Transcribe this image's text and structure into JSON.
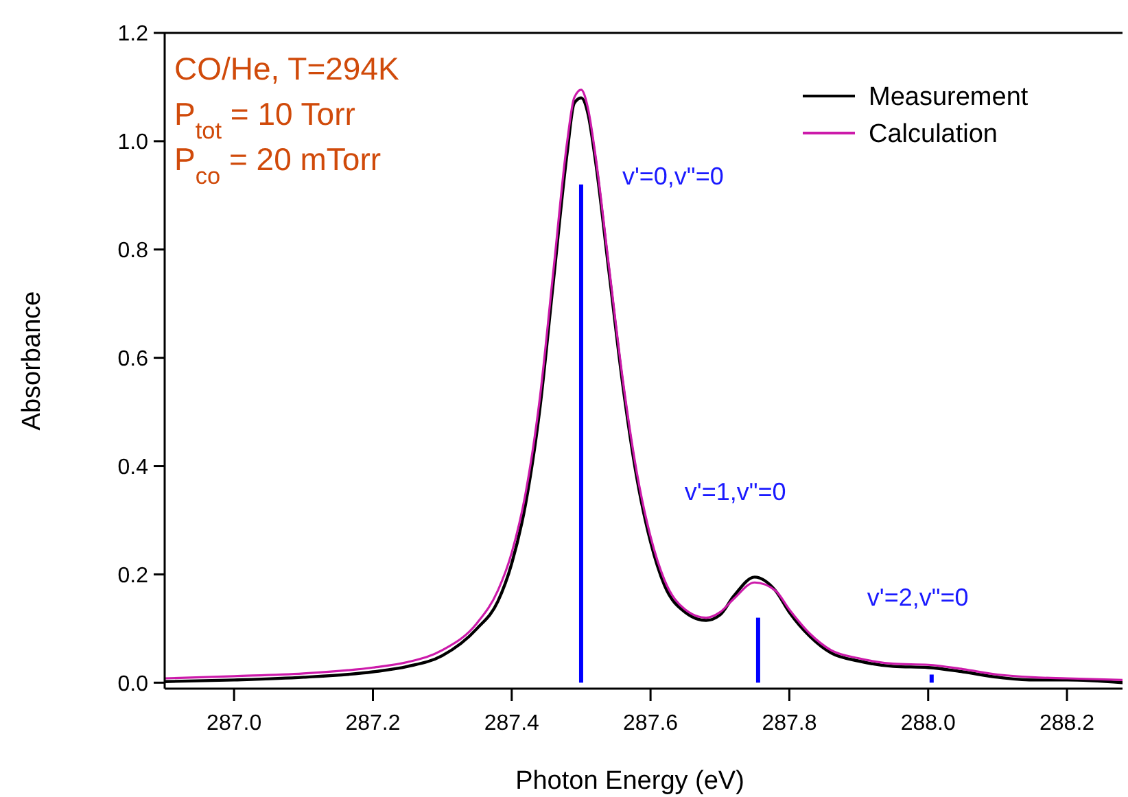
{
  "chart_data": {
    "type": "line",
    "xlabel": "Photon Energy (eV)",
    "ylabel": "Absorbance",
    "xlim": [
      286.9,
      288.28
    ],
    "ylim": [
      -0.011,
      1.2
    ],
    "xticks": [
      {
        "value": 287.0,
        "label": "287.0"
      },
      {
        "value": 287.2,
        "label": "287.2"
      },
      {
        "value": 287.4,
        "label": "287.4"
      },
      {
        "value": 287.6,
        "label": "287.6"
      },
      {
        "value": 287.8,
        "label": "287.8"
      },
      {
        "value": 288.0,
        "label": "288.0"
      },
      {
        "value": 288.2,
        "label": "288.2"
      }
    ],
    "yticks": [
      {
        "value": 0,
        "label": "0.0"
      },
      {
        "value": 0.2,
        "label": "0.2"
      },
      {
        "value": 0.4,
        "label": "0.4"
      },
      {
        "value": 0.6,
        "label": "0.6"
      },
      {
        "value": 0.8,
        "label": "0.8"
      },
      {
        "value": 1.0,
        "label": "1.0"
      },
      {
        "value": 1.2,
        "label": "1.2"
      }
    ],
    "grid": false,
    "legend": "top right",
    "marker": "none",
    "line_style": "solid",
    "x": [
      286.9,
      287.0,
      287.1,
      287.2,
      287.25,
      287.3,
      287.35,
      287.38,
      287.4,
      287.42,
      287.44,
      287.46,
      287.48,
      287.49,
      287.5,
      287.51,
      287.52,
      287.54,
      287.56,
      287.58,
      287.6,
      287.62,
      287.65,
      287.68,
      287.7,
      287.72,
      287.75,
      287.78,
      287.8,
      287.83,
      287.86,
      287.9,
      287.95,
      288.0,
      288.05,
      288.1,
      288.15,
      288.2,
      288.28
    ],
    "series": [
      {
        "name": "Measurement",
        "color": "#000000",
        "values": [
          0.002,
          0.005,
          0.01,
          0.02,
          0.03,
          0.05,
          0.1,
          0.15,
          0.22,
          0.33,
          0.5,
          0.74,
          0.98,
          1.07,
          1.08,
          1.05,
          0.97,
          0.76,
          0.55,
          0.38,
          0.26,
          0.18,
          0.13,
          0.115,
          0.125,
          0.16,
          0.195,
          0.17,
          0.13,
          0.085,
          0.055,
          0.04,
          0.03,
          0.028,
          0.02,
          0.01,
          0.005,
          0.005,
          0.0
        ]
      },
      {
        "name": "Calculation",
        "color": "#cc1aaa",
        "values": [
          0.008,
          0.012,
          0.017,
          0.028,
          0.038,
          0.06,
          0.11,
          0.17,
          0.24,
          0.35,
          0.52,
          0.76,
          1.0,
          1.08,
          1.095,
          1.06,
          0.98,
          0.77,
          0.56,
          0.39,
          0.27,
          0.19,
          0.135,
          0.12,
          0.13,
          0.155,
          0.185,
          0.17,
          0.135,
          0.09,
          0.06,
          0.045,
          0.035,
          0.033,
          0.025,
          0.015,
          0.01,
          0.008,
          0.005
        ]
      },
      {
        "type": "bar",
        "color": "#0000ff",
        "x": [
          287.5,
          287.755,
          288.005
        ],
        "values": [
          0.92,
          0.12,
          0.015
        ]
      }
    ],
    "annotations": [
      "CO/He, T=294K",
      "P$_{tot}$ = 10 Torr",
      "P$_{co}$ = 20 mTorr",
      {
        "text": "v'=0,v\"=0",
        "x": 287.5,
        "y": 0.92
      },
      {
        "text": "v'=1,v\"=0",
        "x": 287.75,
        "y": 0.195
      },
      {
        "text": "v'=2,v\"=0",
        "x": 288.005,
        "y": 0.015
      }
    ]
  }
}
